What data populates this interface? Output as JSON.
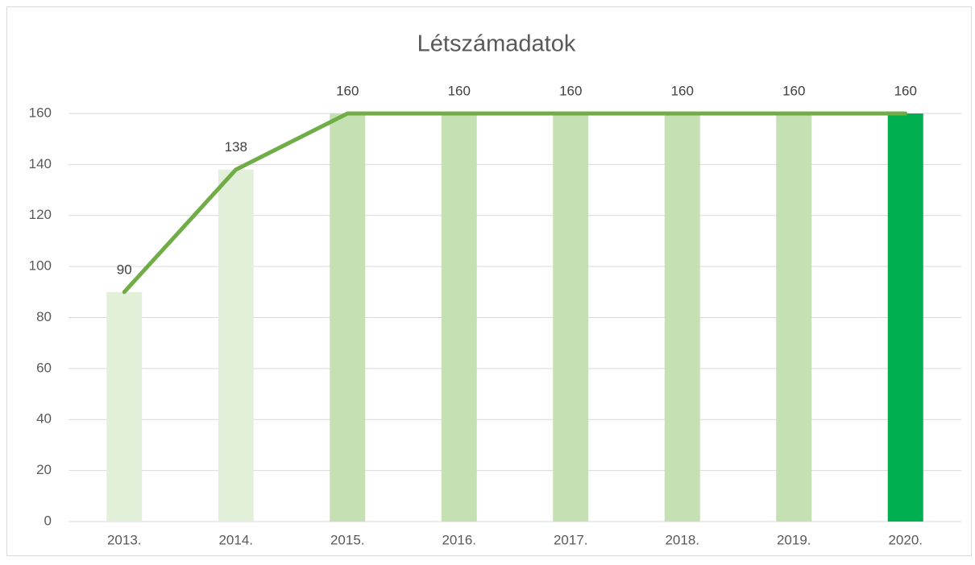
{
  "chart_data": {
    "type": "combo",
    "title": "Létszámadatok",
    "categories": [
      "2013.",
      "2014.",
      "2015.",
      "2016.",
      "2017.",
      "2018.",
      "2019.",
      "2020."
    ],
    "series": [
      {
        "type": "bar",
        "colors": [
          "#e2efd9",
          "#e2efd9",
          "#c5e0b3",
          "#c5e0b3",
          "#c5e0b3",
          "#c5e0b3",
          "#c5e0b3",
          "#00b050"
        ],
        "values": [
          90,
          138,
          160,
          160,
          160,
          160,
          160,
          160
        ]
      },
      {
        "type": "line",
        "color": "#70ad47",
        "values": [
          90,
          138,
          160,
          160,
          160,
          160,
          160,
          160
        ]
      }
    ],
    "ylim": [
      0,
      160
    ],
    "yticks": [
      0,
      20,
      40,
      60,
      80,
      100,
      120,
      140,
      160
    ],
    "grid": true
  }
}
